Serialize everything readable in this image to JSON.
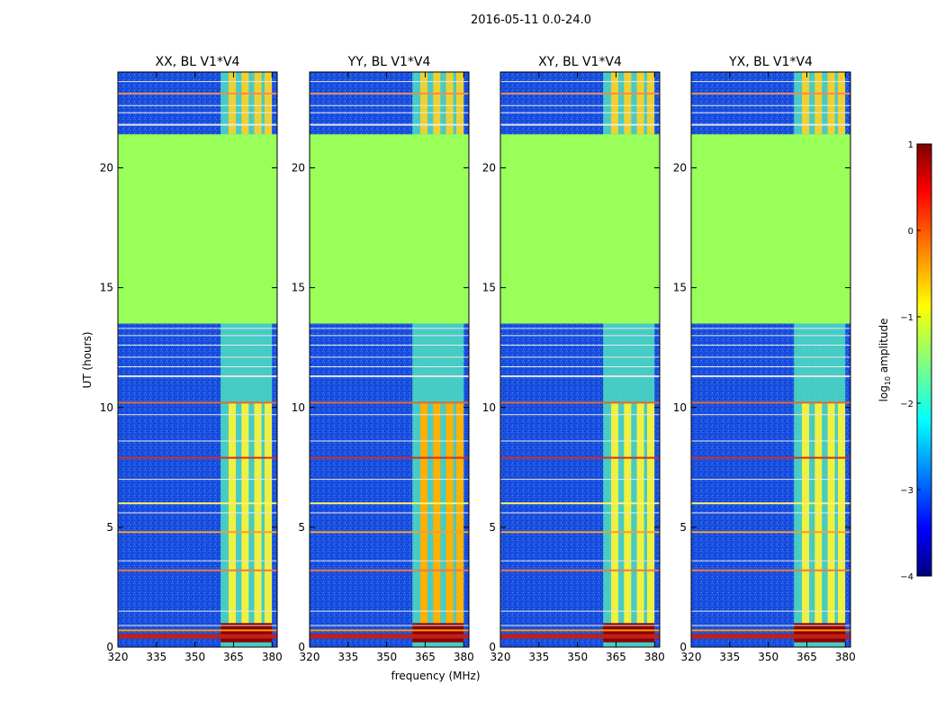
{
  "chart_data": {
    "type": "heatmap",
    "suptitle": "2016-05-11 0.0-24.0",
    "xlabel": "frequency (MHz)",
    "ylabel": "UT (hours)",
    "xlim": [
      320,
      382
    ],
    "ylim": [
      0,
      24
    ],
    "xticks": [
      320,
      335,
      350,
      365,
      380
    ],
    "yticks": [
      0,
      5,
      10,
      15,
      20
    ],
    "flagged_gap_hours": [
      13.5,
      21.4
    ],
    "rfi_band_mhz": [
      360,
      380
    ],
    "bright_channels_mhz": [
      364.5,
      369.5,
      374.5,
      378.5
    ],
    "panels": [
      {
        "title": "XX, BL V1*V4",
        "label_index": 0
      },
      {
        "title": "YY, BL V1*V4",
        "label_index": 1
      },
      {
        "title": "XY, BL V1*V4",
        "label_index": 2
      },
      {
        "title": "YX, BL V1*V4",
        "label_index": 3
      }
    ],
    "colorbar": {
      "label": "log10 amplitude",
      "label_base": "log",
      "label_sub": "10",
      "label_rest": " amplitude",
      "range": [
        -4,
        1
      ],
      "ticks": [
        "1",
        "0",
        "−1",
        "−2",
        "−3",
        "−4"
      ],
      "colormap": "jet"
    }
  }
}
